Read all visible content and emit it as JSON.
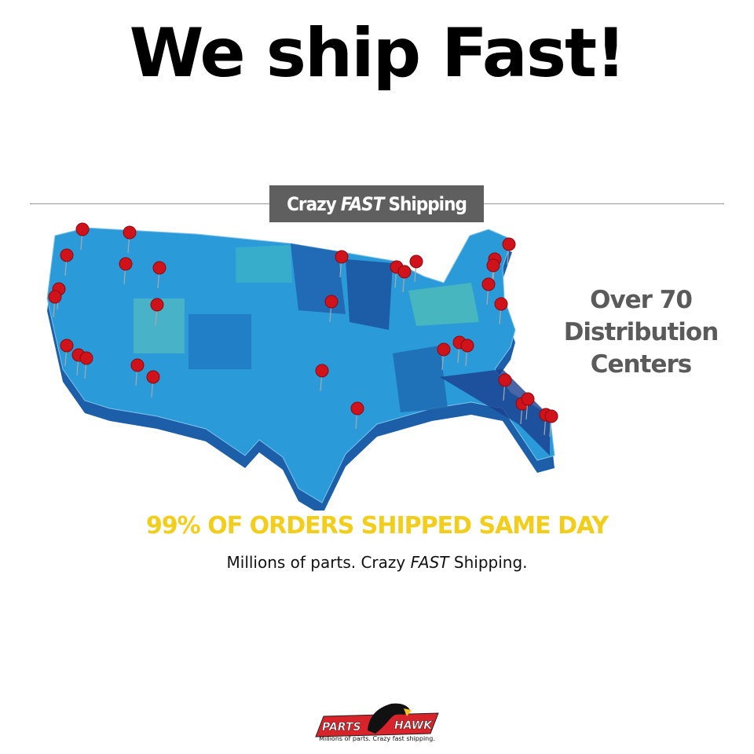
{
  "headline": "We ship Fast!",
  "banner": {
    "pre": "Crazy",
    "em": "FAST",
    "post": "Shipping"
  },
  "centers": {
    "line1": "Over 70",
    "line2": "Distribution",
    "line3": "Centers"
  },
  "sameday": "99% OF ORDERS SHIPPED SAME DAY",
  "sub": {
    "pre": "Millions of parts. Crazy",
    "em": "FAST",
    "post": "Shipping."
  },
  "logo": {
    "left": "PARTS",
    "right": "HAWK",
    "tagline": "Millions of parts. Crazy fast shipping."
  },
  "colors": {
    "map_blue": "#2a9ad8",
    "map_dark": "#1c5ea8",
    "pin": "#d0121b",
    "headline_yellow": "#f2cd1a",
    "logo_red": "#d8232a"
  },
  "map": {
    "icon": "usa-map-with-pins"
  }
}
